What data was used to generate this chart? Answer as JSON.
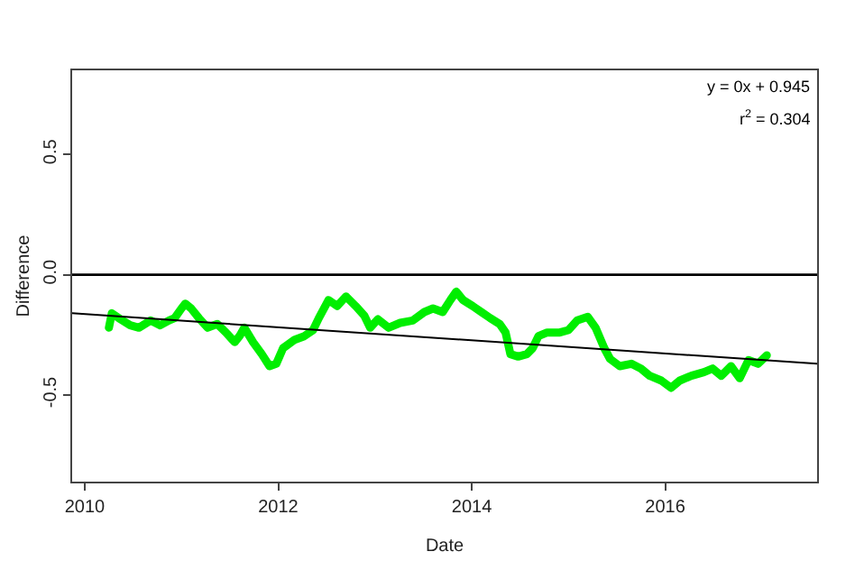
{
  "chart_data": {
    "type": "line",
    "xlabel": "Date",
    "ylabel": "Difference",
    "xlim": [
      2009.87,
      2017.57
    ],
    "ylim": [
      -0.86,
      0.85
    ],
    "xticks": [
      2010,
      2012,
      2014,
      2016
    ],
    "yticks": [
      {
        "value": -0.5,
        "label": "-0.5"
      },
      {
        "value": 0,
        "label": "0.0"
      },
      {
        "value": 0.5,
        "label": "0.5"
      }
    ],
    "grid": false,
    "marker": "none",
    "line_style": "solid",
    "annotations": [
      "y = 0x + 0.945",
      "r$^{2}$ = 0.304"
    ],
    "ref_lines": [
      {
        "axis": "y",
        "value": 0,
        "color": "#000000"
      }
    ],
    "series": [
      {
        "color": "#00ee00",
        "x": [
          2010.25,
          2010.28,
          2010.37,
          2010.47,
          2010.56,
          2010.68,
          2010.78,
          2010.87,
          2010.93,
          2011.0,
          2011.04,
          2011.1,
          2011.18,
          2011.27,
          2011.37,
          2011.46,
          2011.55,
          2011.6,
          2011.65,
          2011.74,
          2011.83,
          2011.91,
          2011.98,
          2012.05,
          2012.17,
          2012.27,
          2012.36,
          2012.42,
          2012.52,
          2012.61,
          2012.7,
          2012.8,
          2012.89,
          2012.95,
          2013.03,
          2013.14,
          2013.26,
          2013.39,
          2013.51,
          2013.6,
          2013.7,
          2013.78,
          2013.84,
          2013.91,
          2014.01,
          2014.1,
          2014.19,
          2014.29,
          2014.35,
          2014.4,
          2014.48,
          2014.57,
          2014.63,
          2014.69,
          2014.78,
          2014.91,
          2015.0,
          2015.09,
          2015.2,
          2015.28,
          2015.37,
          2015.43,
          2015.53,
          2015.65,
          2015.75,
          2015.84,
          2015.96,
          2016.06,
          2016.15,
          2016.27,
          2016.4,
          2016.49,
          2016.58,
          2016.68,
          2016.77,
          2016.86,
          2016.96,
          2017.05
        ],
        "values": [
          -0.22,
          -0.16,
          -0.185,
          -0.21,
          -0.22,
          -0.19,
          -0.21,
          -0.19,
          -0.18,
          -0.14,
          -0.12,
          -0.14,
          -0.18,
          -0.22,
          -0.205,
          -0.24,
          -0.28,
          -0.255,
          -0.22,
          -0.28,
          -0.33,
          -0.38,
          -0.37,
          -0.305,
          -0.27,
          -0.255,
          -0.23,
          -0.18,
          -0.105,
          -0.13,
          -0.09,
          -0.13,
          -0.17,
          -0.22,
          -0.185,
          -0.22,
          -0.2,
          -0.19,
          -0.155,
          -0.14,
          -0.155,
          -0.105,
          -0.07,
          -0.105,
          -0.13,
          -0.155,
          -0.18,
          -0.205,
          -0.24,
          -0.33,
          -0.34,
          -0.33,
          -0.305,
          -0.255,
          -0.24,
          -0.24,
          -0.23,
          -0.19,
          -0.175,
          -0.22,
          -0.305,
          -0.35,
          -0.38,
          -0.37,
          -0.39,
          -0.42,
          -0.44,
          -0.47,
          -0.44,
          -0.42,
          -0.405,
          -0.39,
          -0.42,
          -0.38,
          -0.43,
          -0.355,
          -0.37,
          -0.335
        ]
      },
      {
        "type": "line",
        "color": "#000000",
        "x": [
          2009.87,
          2017.57
        ],
        "values": [
          -0.16,
          -0.37
        ]
      }
    ]
  }
}
